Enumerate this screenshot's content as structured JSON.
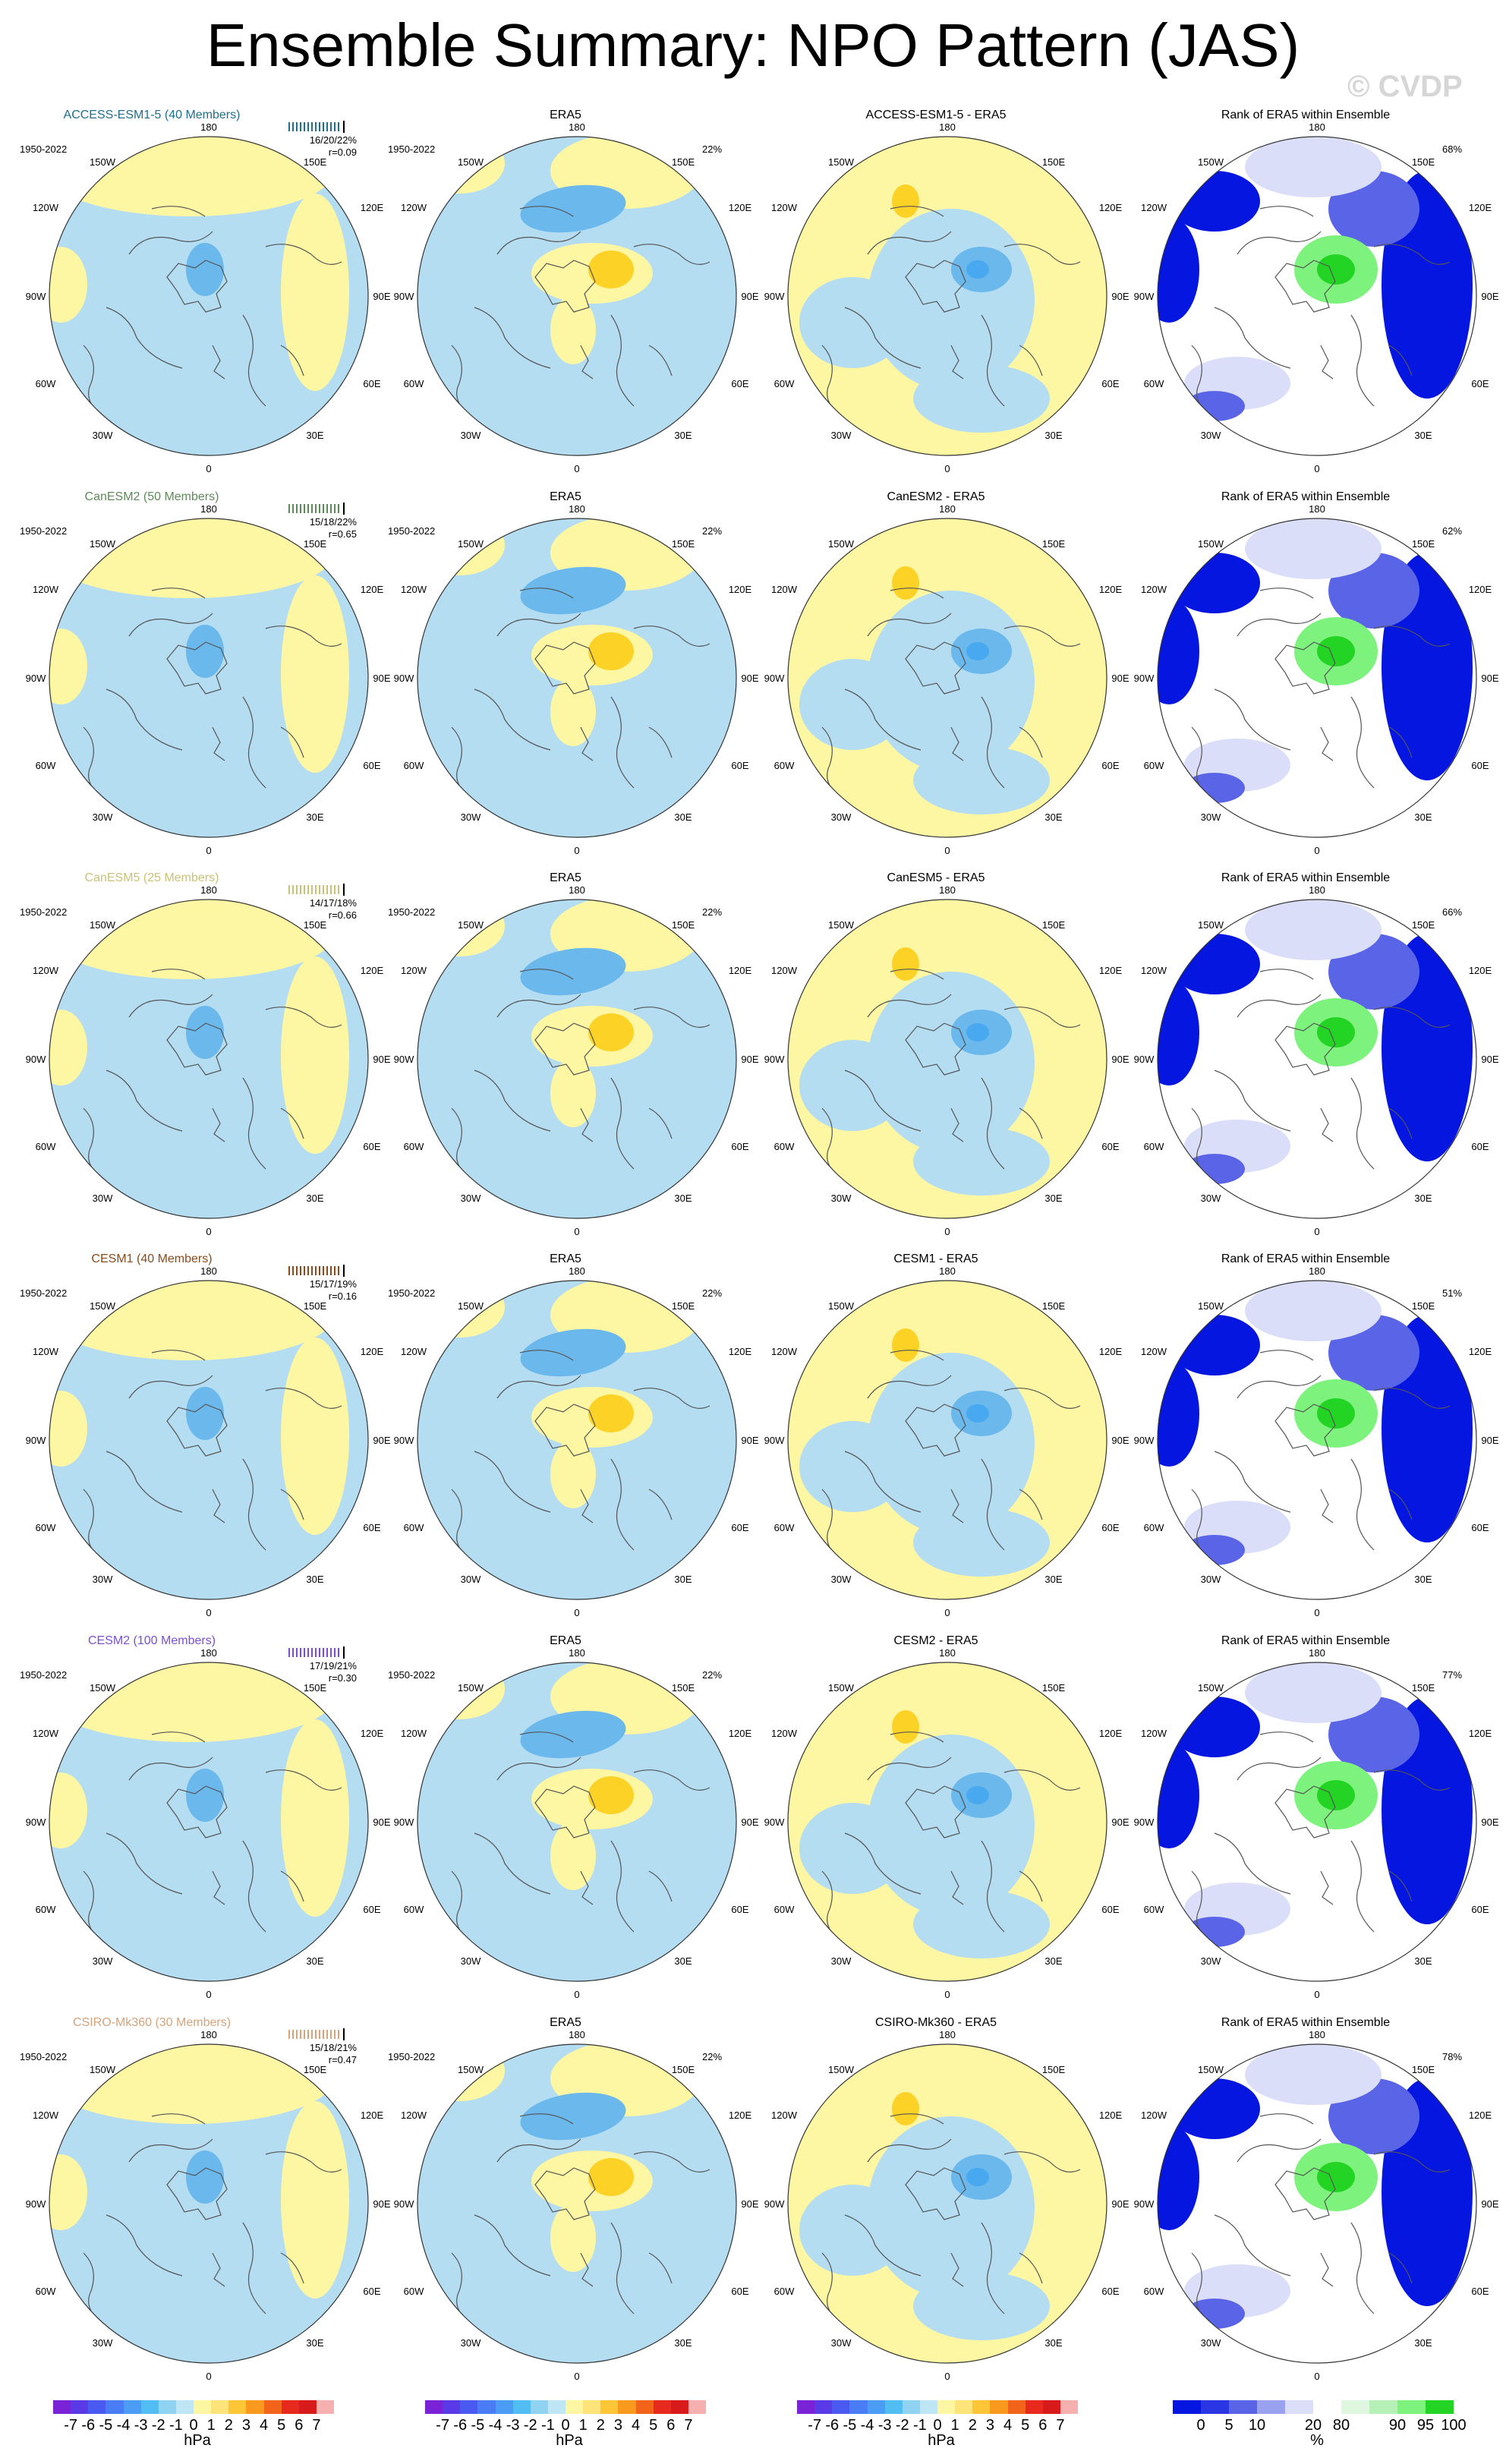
{
  "title": "Ensemble Summary: NPO Pattern (JAS)",
  "watermark": "© CVDP",
  "period": "1950-2022",
  "obs_name": "ERA5",
  "obs_pct": "22%",
  "rank_title": "Rank of ERA5 within Ensemble",
  "lon_labels": {
    "n": "180",
    "ne": "150E",
    "e1": "120E",
    "e": "90E",
    "se1": "60E",
    "se": "30E",
    "s": "0",
    "sw": "30W",
    "sw1": "60W",
    "w": "90W",
    "nw1": "120W",
    "nw": "150W"
  },
  "colors": {
    "pos": "#fdf6a3",
    "pos2": "#fcd226",
    "neg": "#b4ddf2",
    "neg2": "#6bb8ec",
    "neg3": "#48a8f0",
    "rank_hi": "#0516e0",
    "rank_mid": "#5a64e6",
    "rank_lo": "#dadef8",
    "rank_green": "#7df27d",
    "rank_green2": "#24d424"
  },
  "rows": [
    {
      "model": "ACCESS-ESM1-5 (40 Members)",
      "diff": "ACCESS-ESM1-5 - ERA5",
      "stats": "16/20/22%",
      "r": "r=0.09",
      "rank_pct": "68%",
      "color": "#1f6e8c"
    },
    {
      "model": "CanESM2 (50 Members)",
      "diff": "CanESM2 - ERA5",
      "stats": "15/18/22%",
      "r": "r=0.65",
      "rank_pct": "62%",
      "color": "#5e8a5a"
    },
    {
      "model": "CanESM5 (25 Members)",
      "diff": "CanESM5 - ERA5",
      "stats": "14/17/18%",
      "r": "r=0.66",
      "rank_pct": "66%",
      "color": "#c9c276"
    },
    {
      "model": "CESM1 (40 Members)",
      "diff": "CESM1 - ERA5",
      "stats": "15/17/19%",
      "r": "r=0.16",
      "rank_pct": "51%",
      "color": "#8a4b1a"
    },
    {
      "model": "CESM2 (100 Members)",
      "diff": "CESM2 - ERA5",
      "stats": "17/19/21%",
      "r": "r=0.30",
      "rank_pct": "77%",
      "color": "#7a4fd6"
    },
    {
      "model": "CSIRO-Mk360 (30 Members)",
      "diff": "CSIRO-Mk360 - ERA5",
      "stats": "15/18/21%",
      "r": "r=0.47",
      "rank_pct": "78%",
      "color": "#d6a37a"
    }
  ],
  "colorbar_hpa": {
    "ticks": [
      "-7",
      "-6",
      "-5",
      "-4",
      "-3",
      "-2",
      "-1",
      "0",
      "1",
      "2",
      "3",
      "4",
      "5",
      "6",
      "7"
    ],
    "colors": [
      "#7a22d6",
      "#5a3ae6",
      "#4a5af0",
      "#4a7cf5",
      "#4a9cf5",
      "#52bdf2",
      "#8fd2f2",
      "#bfe6f5",
      "#fdf6a3",
      "#fce37a",
      "#fcc636",
      "#f99a1e",
      "#f2641a",
      "#e82a1e",
      "#d81a1a",
      "#f7b0b0"
    ],
    "unit": "hPa"
  },
  "colorbar_rank": {
    "ticks": [
      "0",
      "5",
      "10",
      "",
      "20",
      "80",
      "",
      "90",
      "95",
      "100"
    ],
    "colors": [
      "#0516e0",
      "#2a36e3",
      "#5a64e6",
      "#9aa2f0",
      "#dadef8",
      "#ffffff",
      "#dff7df",
      "#b6f0b6",
      "#7df27d",
      "#24d424"
    ],
    "unit": "%"
  }
}
